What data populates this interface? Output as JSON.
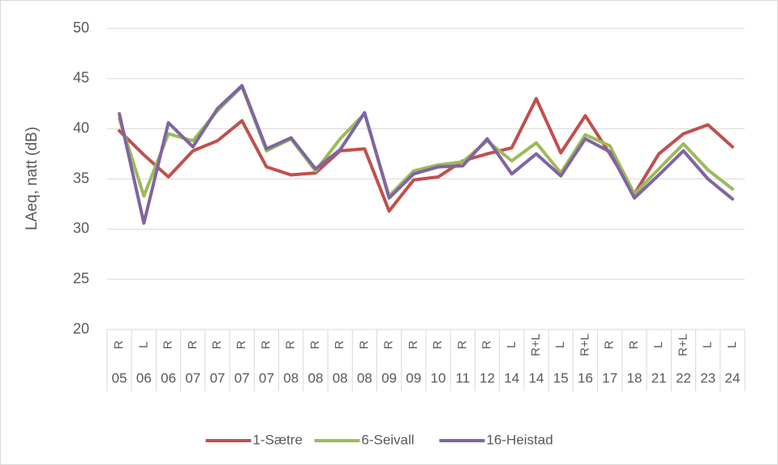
{
  "chart_data": {
    "type": "line",
    "y_label": "LAeq, natt (dB)",
    "categories": [
      "R",
      "L",
      "R",
      "R",
      "R",
      "R",
      "R",
      "R",
      "R",
      "R",
      "R",
      "R",
      "R",
      "R",
      "R",
      "R",
      "L",
      "R+L",
      "L",
      "R+L",
      "R",
      "R",
      "L",
      "R+L",
      "L",
      "L"
    ],
    "category_groups": [
      "05",
      "06",
      "06",
      "07",
      "07",
      "07",
      "07",
      "08",
      "08",
      "08",
      "08",
      "09",
      "09",
      "10",
      "11",
      "12",
      "14",
      "14",
      "15",
      "16",
      "17",
      "18",
      "21",
      "22",
      "23",
      "24"
    ],
    "ylim": [
      20,
      50
    ],
    "yticks": [
      20,
      25,
      30,
      35,
      40,
      45,
      50
    ],
    "grid": true,
    "legend": "bottom",
    "series": [
      {
        "name": "1-Sætre",
        "color": "#c0504d",
        "values": [
          39.8,
          37.4,
          35.2,
          37.8,
          38.8,
          40.8,
          36.2,
          35.4,
          35.6,
          37.8,
          38.0,
          31.8,
          34.9,
          35.2,
          36.8,
          37.5,
          38.1,
          43.0,
          37.6,
          41.3,
          37.5,
          33.5,
          37.5,
          39.5,
          40.4,
          38.2
        ]
      },
      {
        "name": "6-Seivall",
        "color": "#9bbb59",
        "values": [
          41.0,
          33.3,
          39.5,
          38.8,
          41.8,
          44.2,
          37.8,
          39.0,
          35.8,
          39.0,
          41.5,
          33.3,
          35.8,
          36.4,
          36.7,
          38.8,
          36.8,
          38.6,
          35.6,
          39.4,
          38.3,
          33.5,
          36.0,
          38.5,
          35.9,
          34.0
        ]
      },
      {
        "name": "16-Heistad",
        "color": "#8064a2",
        "values": [
          41.5,
          30.6,
          40.6,
          38.2,
          42.0,
          44.3,
          38.0,
          39.1,
          36.0,
          37.9,
          41.6,
          33.1,
          35.5,
          36.2,
          36.3,
          39.0,
          35.5,
          37.5,
          35.3,
          39.0,
          37.7,
          33.1,
          35.4,
          37.8,
          35.0,
          33.0
        ]
      }
    ]
  }
}
